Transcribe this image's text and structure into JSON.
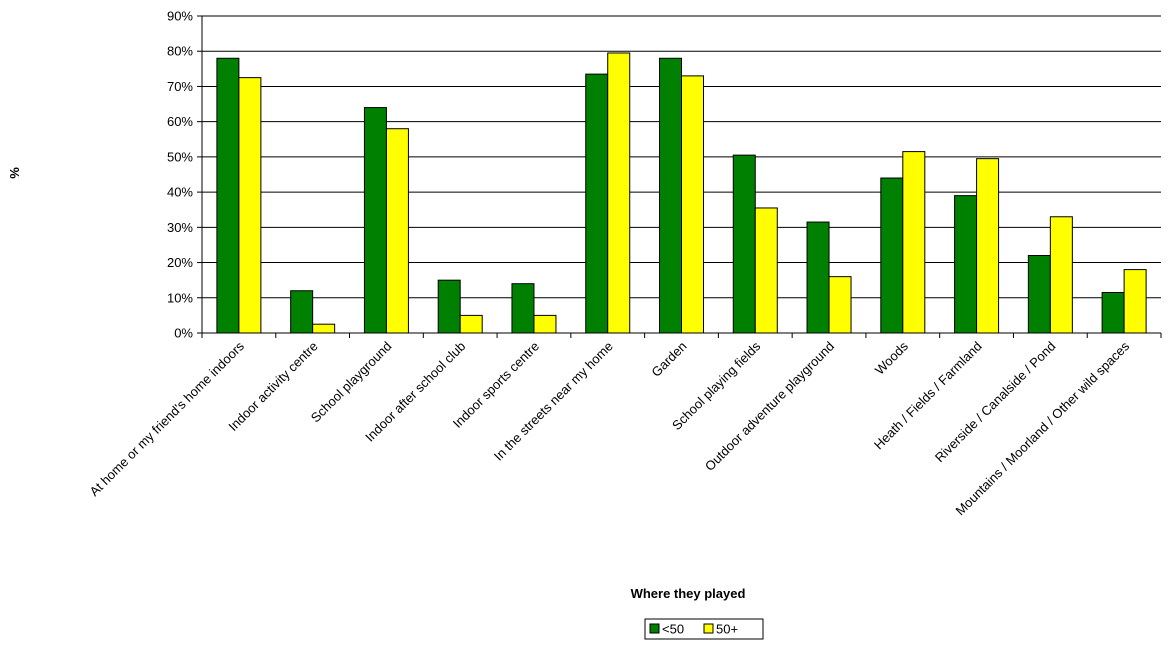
{
  "chart_data": {
    "type": "bar",
    "ylabel": "%",
    "xlabel": "Where they played",
    "ylim": [
      0,
      90
    ],
    "yticks": [
      "0%",
      "10%",
      "20%",
      "30%",
      "40%",
      "50%",
      "60%",
      "70%",
      "80%",
      "90%"
    ],
    "grid": true,
    "legend_position": "bottom-center",
    "categories": [
      "At home or my friend's home indoors",
      "Indoor activity centre",
      "School playground",
      "Indoor after school club",
      "Indoor sports centre",
      "In the streets near my home",
      "Garden",
      "School playing fields",
      "Outdoor adventure playground",
      "Woods",
      "Heath / Fields / Farmland",
      "Riverside / Canalside / Pond",
      "Mountains / Moorland / Other wild spaces"
    ],
    "series": [
      {
        "name": "<50",
        "color": "#008000",
        "values": [
          78,
          12,
          64,
          15,
          14,
          73.5,
          78,
          50.5,
          31.5,
          44,
          39,
          22,
          11.5
        ]
      },
      {
        "name": "50+",
        "color": "#ffff00",
        "values": [
          72.5,
          2.5,
          58,
          5,
          5,
          79.5,
          73,
          35.5,
          16,
          51.5,
          49.5,
          33,
          18
        ]
      }
    ]
  }
}
